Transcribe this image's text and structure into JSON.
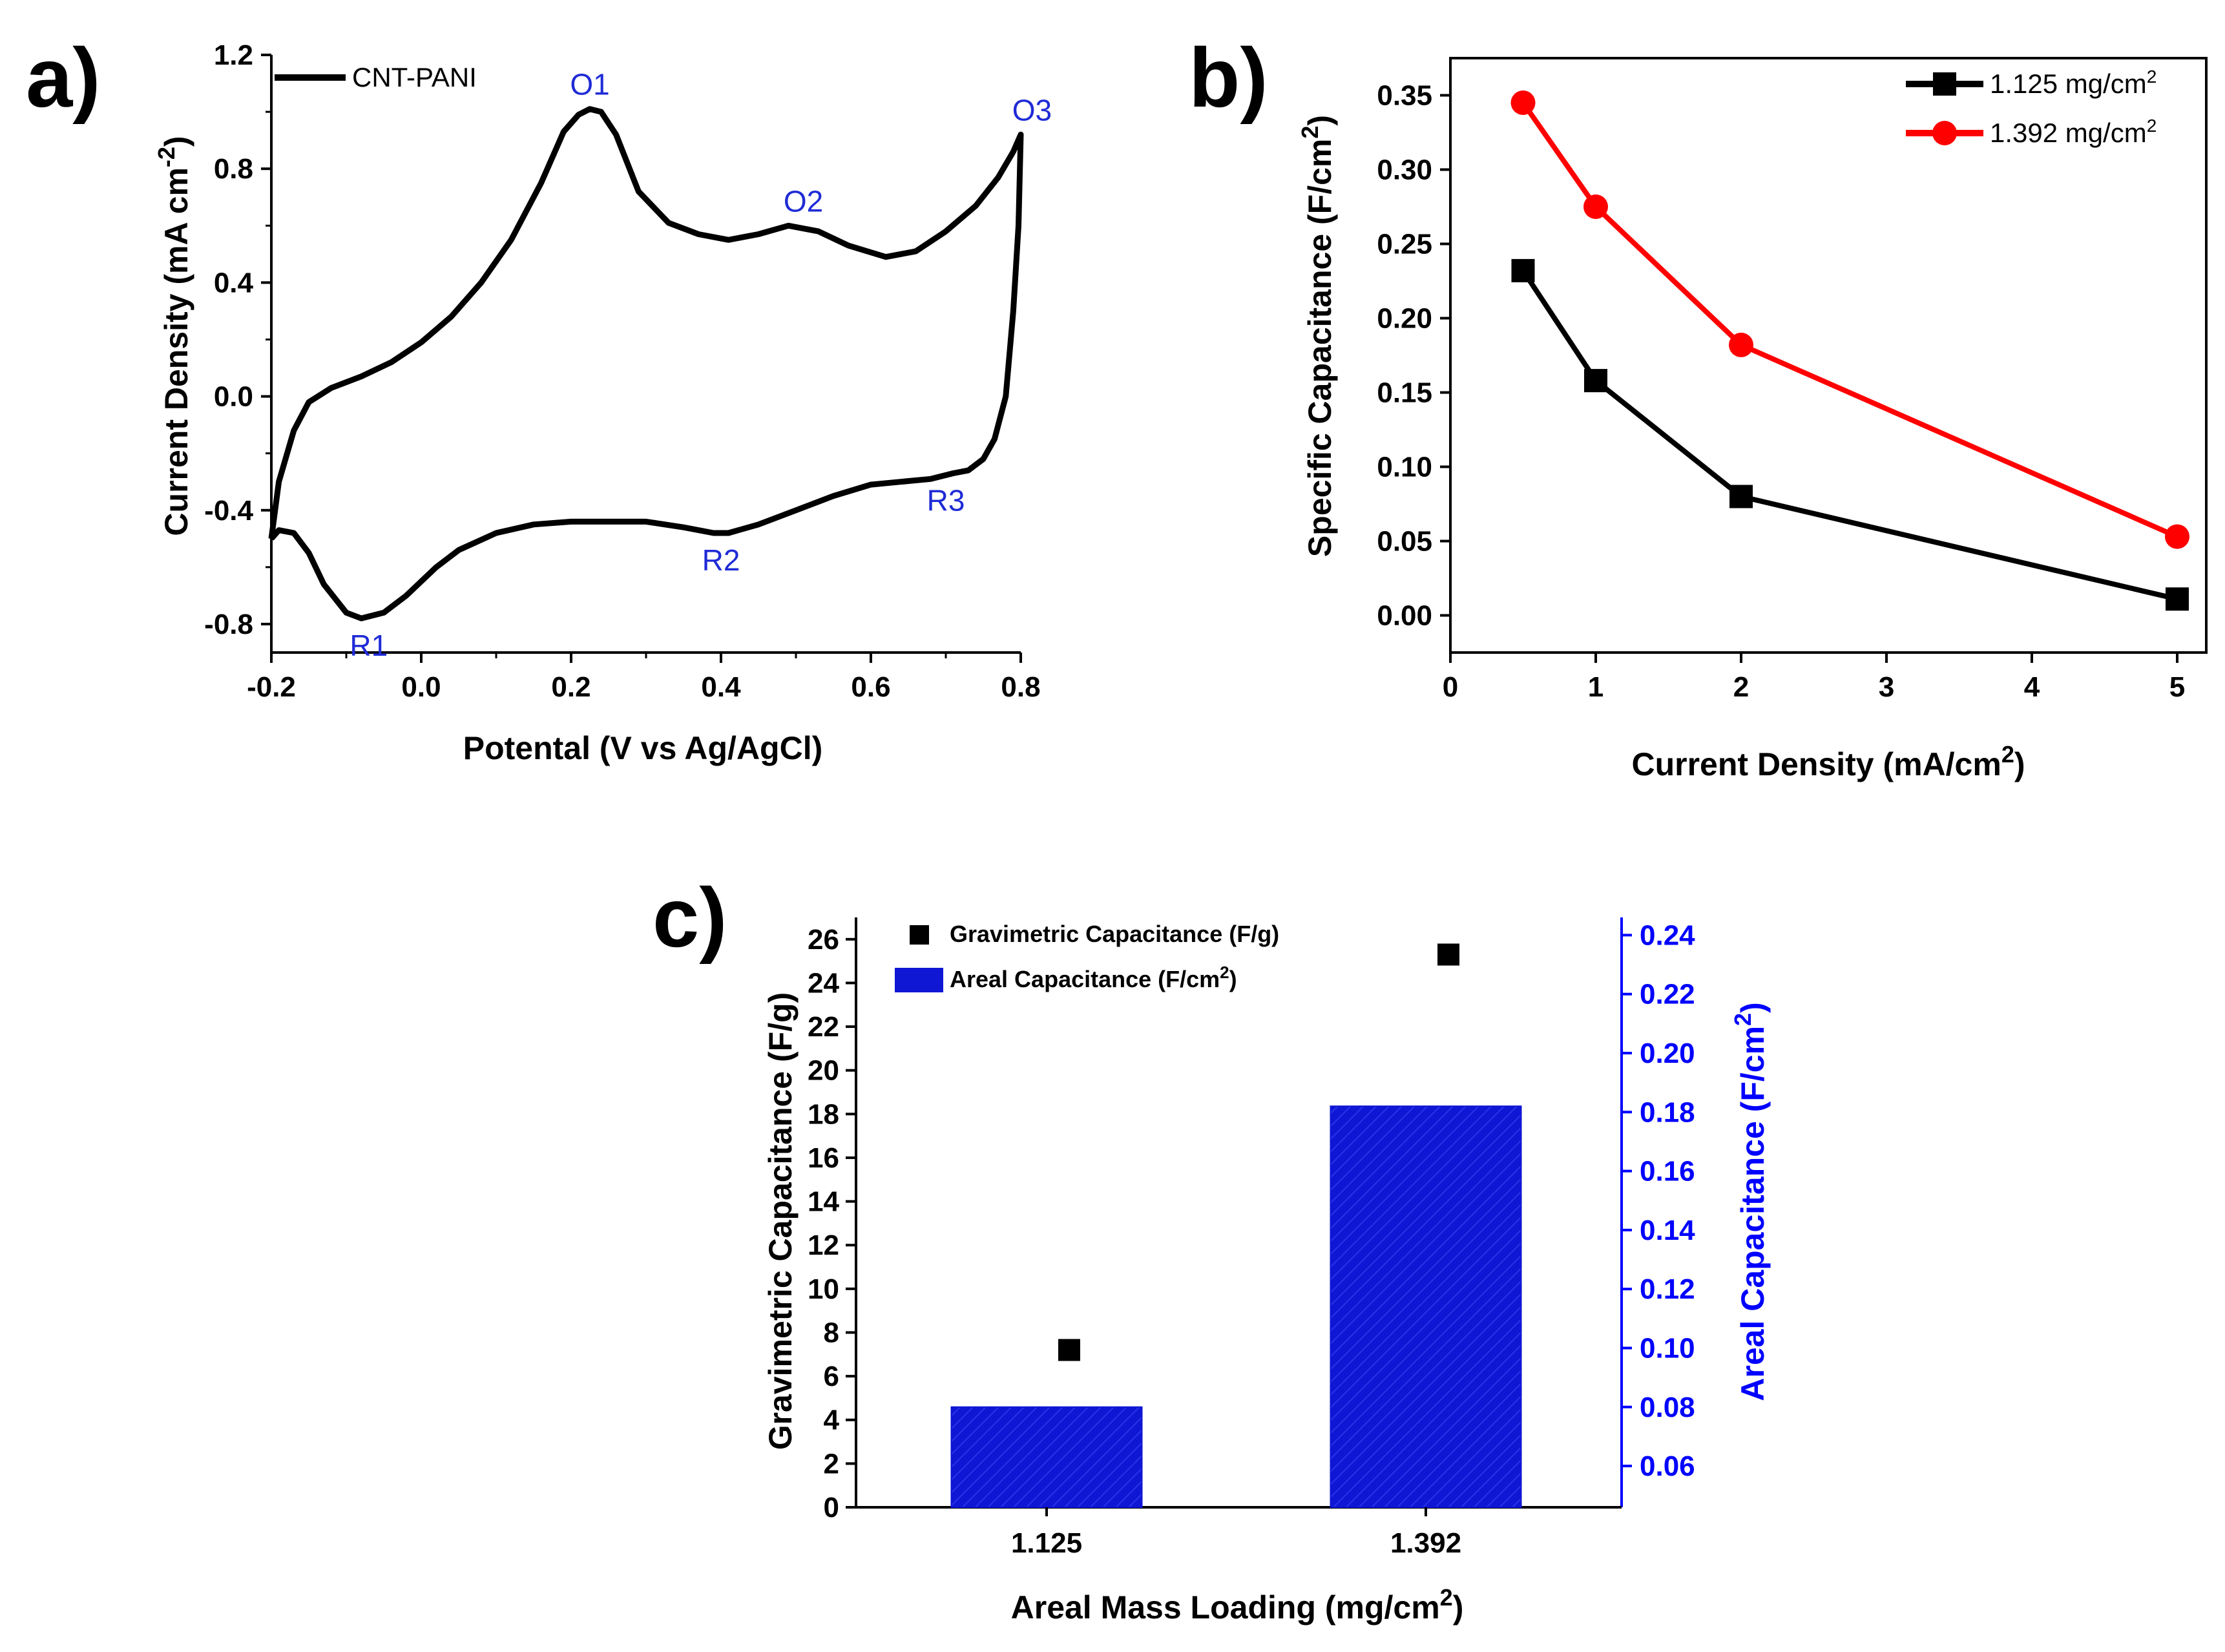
{
  "colors": {
    "black": "#000000",
    "red": "#ff0000",
    "blue": "#0000ff",
    "bar_fill": "#0f16d4",
    "annotation": "#1f2bd6"
  },
  "chart_data": [
    {
      "id": "a",
      "panel_label": "a)",
      "type": "line",
      "title": "",
      "xlabel": "Potental (V vs Ag/AgCl)",
      "ylabel": "Current Density (mA cm",
      "ylabel_sup": "-2",
      "ylabel_tail": ")",
      "xlim": [
        -0.2,
        0.8
      ],
      "ylim": [
        -0.9,
        1.2
      ],
      "xticks": [
        -0.2,
        0.0,
        0.2,
        0.4,
        0.6,
        0.8
      ],
      "xtick_labels": [
        "-0.2",
        "0.0",
        "0.2",
        "0.4",
        "0.6",
        "0.8"
      ],
      "yticks": [
        -0.8,
        -0.4,
        0.0,
        0.4,
        0.8,
        1.2
      ],
      "ytick_labels": [
        "-0.8",
        "-0.4",
        "0.0",
        "0.4",
        "0.8",
        "1.2"
      ],
      "legend": "top-left",
      "series": [
        {
          "name": "CNT-PANI",
          "color": "#000000",
          "x": [
            -0.2,
            -0.19,
            -0.17,
            -0.15,
            -0.12,
            -0.08,
            -0.04,
            0.0,
            0.04,
            0.08,
            0.12,
            0.16,
            0.19,
            0.21,
            0.225,
            0.24,
            0.26,
            0.29,
            0.33,
            0.37,
            0.41,
            0.45,
            0.49,
            0.53,
            0.57,
            0.62,
            0.66,
            0.7,
            0.74,
            0.77,
            0.79,
            0.8,
            0.797,
            0.79,
            0.78,
            0.765,
            0.75,
            0.73,
            0.71,
            0.68,
            0.64,
            0.6,
            0.55,
            0.5,
            0.45,
            0.41,
            0.39,
            0.35,
            0.3,
            0.25,
            0.2,
            0.15,
            0.1,
            0.05,
            0.02,
            0.0,
            -0.02,
            -0.05,
            -0.08,
            -0.1,
            -0.13,
            -0.15,
            -0.17,
            -0.19,
            -0.2
          ],
          "y": [
            -0.5,
            -0.3,
            -0.12,
            -0.02,
            0.03,
            0.07,
            0.12,
            0.19,
            0.28,
            0.4,
            0.55,
            0.75,
            0.93,
            0.99,
            1.01,
            1.0,
            0.92,
            0.72,
            0.61,
            0.57,
            0.55,
            0.57,
            0.6,
            0.58,
            0.53,
            0.49,
            0.51,
            0.58,
            0.67,
            0.77,
            0.86,
            0.92,
            0.6,
            0.3,
            0.0,
            -0.15,
            -0.22,
            -0.26,
            -0.27,
            -0.29,
            -0.3,
            -0.31,
            -0.35,
            -0.4,
            -0.45,
            -0.48,
            -0.48,
            -0.46,
            -0.44,
            -0.44,
            -0.44,
            -0.45,
            -0.48,
            -0.54,
            -0.6,
            -0.65,
            -0.7,
            -0.76,
            -0.78,
            -0.76,
            -0.66,
            -0.55,
            -0.48,
            -0.47,
            -0.5
          ]
        }
      ],
      "annotations": [
        {
          "text": "O1",
          "x": 0.225,
          "y": 1.01
        },
        {
          "text": "O2",
          "x": 0.51,
          "y": 0.6
        },
        {
          "text": "O3",
          "x": 0.815,
          "y": 0.92
        },
        {
          "text": "R1",
          "x": -0.07,
          "y": -0.78
        },
        {
          "text": "R2",
          "x": 0.4,
          "y": -0.48
        },
        {
          "text": "R3",
          "x": 0.7,
          "y": -0.27
        }
      ]
    },
    {
      "id": "b",
      "panel_label": "b)",
      "type": "line",
      "title": "",
      "xlabel": "Current Density (mA/cm",
      "xlabel_sup": "2",
      "xlabel_tail": ")",
      "ylabel": "Specific Capacitance (F/cm",
      "ylabel_sup": "2",
      "ylabel_tail": ")",
      "xlim": [
        0,
        5.2
      ],
      "ylim": [
        -0.025,
        0.375
      ],
      "xticks": [
        0,
        1,
        2,
        3,
        4,
        5
      ],
      "xtick_labels": [
        "0",
        "1",
        "2",
        "3",
        "4",
        "5"
      ],
      "yticks": [
        0.0,
        0.05,
        0.1,
        0.15,
        0.2,
        0.25,
        0.3,
        0.35
      ],
      "ytick_labels": [
        "0.00",
        "0.05",
        "0.10",
        "0.15",
        "0.20",
        "0.25",
        "0.30",
        "0.35"
      ],
      "legend": "top-right",
      "series": [
        {
          "name": "1.125 mg/cm",
          "name_sup": "2",
          "marker": "square",
          "color": "#000000",
          "x": [
            0.5,
            1,
            2,
            5
          ],
          "y": [
            0.232,
            0.158,
            0.08,
            0.011
          ]
        },
        {
          "name": "1.392 mg/cm",
          "name_sup": "2",
          "marker": "circle",
          "color": "#ff0000",
          "x": [
            0.5,
            1,
            2,
            5
          ],
          "y": [
            0.345,
            0.275,
            0.182,
            0.053
          ]
        }
      ]
    },
    {
      "id": "c",
      "panel_label": "c)",
      "type": "bar",
      "title": "",
      "xlabel": "Areal Mass Loading (mg/cm",
      "xlabel_sup": "2",
      "xlabel_tail": ")",
      "categories": [
        "1.125",
        "1.392"
      ],
      "ylabel_left": "Gravimetric Capacitance (F/g)",
      "ylabel_right": "Areal Capacitance (F/cm",
      "ylabel_right_sup": "2",
      "ylabel_right_tail": ")",
      "ylim_left": [
        0,
        27
      ],
      "ylim_right": [
        0.046,
        0.246
      ],
      "yticks_left": [
        0,
        2,
        4,
        6,
        8,
        10,
        12,
        14,
        16,
        18,
        20,
        22,
        24,
        26
      ],
      "ytick_labels_left": [
        "0",
        "2",
        "4",
        "6",
        "8",
        "10",
        "12",
        "14",
        "16",
        "18",
        "20",
        "22",
        "24",
        "26"
      ],
      "yticks_right": [
        0.06,
        0.08,
        0.1,
        0.12,
        0.14,
        0.16,
        0.18,
        0.2,
        0.22,
        0.24
      ],
      "ytick_labels_right": [
        "0.06",
        "0.08",
        "0.10",
        "0.12",
        "0.14",
        "0.16",
        "0.18",
        "0.20",
        "0.22",
        "0.24"
      ],
      "legend": "top-left",
      "series": [
        {
          "name": "Gravimetric Capacitance (F/g)",
          "kind": "scatter",
          "axis": "left",
          "color": "#000000",
          "values": [
            7.2,
            25.3
          ]
        },
        {
          "name": "Areal Capacitance (F/cm",
          "name_sup": "2",
          "name_tail": ")",
          "kind": "bar",
          "axis": "right",
          "color": "#0f16d4",
          "values": [
            0.08,
            0.182
          ]
        }
      ]
    }
  ]
}
